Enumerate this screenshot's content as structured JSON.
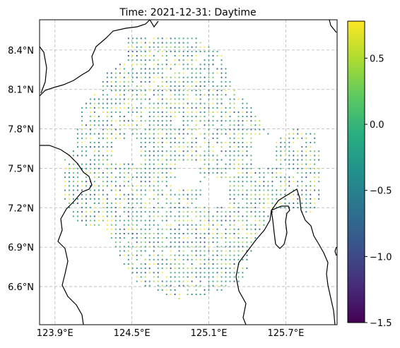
{
  "title": "Time: 2021-12-31: Daytime",
  "map": {
    "lon_range": [
      123.78,
      126.1
    ],
    "lat_range": [
      6.31,
      8.63
    ],
    "lon_ticks": [
      {
        "value": 123.9,
        "label": "123.9°E"
      },
      {
        "value": 124.5,
        "label": "124.5°E"
      },
      {
        "value": 125.1,
        "label": "125.1°E"
      },
      {
        "value": 125.7,
        "label": "125.7°E"
      }
    ],
    "lat_ticks": [
      {
        "value": 8.4,
        "label": "8.4°N"
      },
      {
        "value": 8.1,
        "label": "8.1°N"
      },
      {
        "value": 7.8,
        "label": "7.8°N"
      },
      {
        "value": 7.5,
        "label": "7.5°N"
      },
      {
        "value": 7.2,
        "label": "7.2°N"
      },
      {
        "value": 6.9,
        "label": "6.9°N"
      },
      {
        "value": 6.6,
        "label": "6.6°N"
      }
    ],
    "gridlines": true,
    "grid_style": "dashed",
    "coastline_color": "#000000",
    "point_spacing_deg": 0.033
  },
  "colorbar": {
    "colormap": "viridis",
    "min": -1.5,
    "max": 0.78,
    "ticks": [
      {
        "value": 0.5,
        "label": "0.5"
      },
      {
        "value": 0.0,
        "label": "0.0"
      },
      {
        "value": -0.5,
        "label": "−0.5"
      },
      {
        "value": -1.0,
        "label": "−1.0"
      },
      {
        "value": -1.5,
        "label": "−1.5"
      }
    ]
  }
}
